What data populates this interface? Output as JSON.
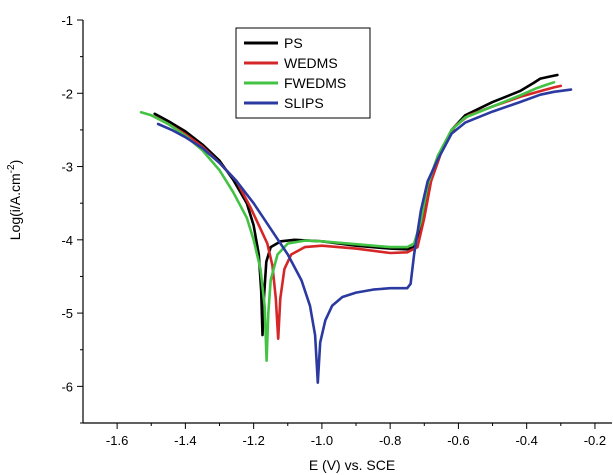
{
  "chart_data": {
    "type": "line",
    "title": "",
    "xlabel": "E (V) vs. SCE",
    "ylabel": {
      "prefix": "Log(i/A.cm",
      "sup": "-2",
      "suffix": ")"
    },
    "xlim": [
      -1.7,
      -0.15
    ],
    "ylim": [
      -6.5,
      -1
    ],
    "xticks": [
      -1.6,
      -1.4,
      -1.2,
      -1.0,
      -0.8,
      -0.6,
      -0.4,
      -0.2
    ],
    "xtick_labels": [
      "-1.6",
      "-1.4",
      "-1.2",
      "-1.0",
      "-0.8",
      "-0.6",
      "-0.4",
      "-0.2"
    ],
    "yticks": [
      -6,
      -5,
      -4,
      -3,
      -2,
      -1
    ],
    "ytick_labels": [
      "-6",
      "-5",
      "-4",
      "-3",
      "-2",
      "-1"
    ],
    "grid": false,
    "legend_position": "top-center",
    "series": [
      {
        "name": "PS",
        "color": "#000000",
        "points": [
          [
            -1.49,
            -2.28
          ],
          [
            -1.45,
            -2.38
          ],
          [
            -1.4,
            -2.52
          ],
          [
            -1.35,
            -2.7
          ],
          [
            -1.3,
            -2.92
          ],
          [
            -1.26,
            -3.18
          ],
          [
            -1.22,
            -3.5
          ],
          [
            -1.2,
            -3.8
          ],
          [
            -1.185,
            -4.2
          ],
          [
            -1.178,
            -4.7
          ],
          [
            -1.174,
            -5.3
          ],
          [
            -1.17,
            -4.8
          ],
          [
            -1.163,
            -4.3
          ],
          [
            -1.15,
            -4.1
          ],
          [
            -1.12,
            -4.02
          ],
          [
            -1.08,
            -4.0
          ],
          [
            -1.0,
            -4.02
          ],
          [
            -0.9,
            -4.08
          ],
          [
            -0.8,
            -4.12
          ],
          [
            -0.75,
            -4.13
          ],
          [
            -0.73,
            -4.1
          ],
          [
            -0.71,
            -3.8
          ],
          [
            -0.69,
            -3.3
          ],
          [
            -0.66,
            -2.9
          ],
          [
            -0.62,
            -2.5
          ],
          [
            -0.58,
            -2.3
          ],
          [
            -0.5,
            -2.12
          ],
          [
            -0.42,
            -1.97
          ],
          [
            -0.38,
            -1.86
          ],
          [
            -0.36,
            -1.8
          ],
          [
            -0.33,
            -1.77
          ],
          [
            -0.31,
            -1.75
          ]
        ]
      },
      {
        "name": "WEDMS",
        "color": "#d62728",
        "points": [
          [
            -1.49,
            -2.32
          ],
          [
            -1.45,
            -2.42
          ],
          [
            -1.4,
            -2.56
          ],
          [
            -1.35,
            -2.73
          ],
          [
            -1.3,
            -2.95
          ],
          [
            -1.25,
            -3.2
          ],
          [
            -1.21,
            -3.55
          ],
          [
            -1.18,
            -3.85
          ],
          [
            -1.16,
            -4.05
          ],
          [
            -1.145,
            -4.35
          ],
          [
            -1.135,
            -4.8
          ],
          [
            -1.128,
            -5.35
          ],
          [
            -1.122,
            -4.8
          ],
          [
            -1.11,
            -4.4
          ],
          [
            -1.09,
            -4.2
          ],
          [
            -1.05,
            -4.1
          ],
          [
            -1.0,
            -4.08
          ],
          [
            -0.9,
            -4.12
          ],
          [
            -0.8,
            -4.18
          ],
          [
            -0.75,
            -4.17
          ],
          [
            -0.72,
            -4.1
          ],
          [
            -0.7,
            -3.7
          ],
          [
            -0.68,
            -3.2
          ],
          [
            -0.65,
            -2.8
          ],
          [
            -0.61,
            -2.45
          ],
          [
            -0.57,
            -2.3
          ],
          [
            -0.5,
            -2.18
          ],
          [
            -0.42,
            -2.05
          ],
          [
            -0.36,
            -1.97
          ],
          [
            -0.32,
            -1.92
          ],
          [
            -0.3,
            -1.9
          ]
        ]
      },
      {
        "name": "FWEDMS",
        "color": "#44c244",
        "points": [
          [
            -1.53,
            -2.26
          ],
          [
            -1.5,
            -2.3
          ],
          [
            -1.45,
            -2.42
          ],
          [
            -1.4,
            -2.58
          ],
          [
            -1.35,
            -2.78
          ],
          [
            -1.3,
            -3.05
          ],
          [
            -1.26,
            -3.35
          ],
          [
            -1.22,
            -3.7
          ],
          [
            -1.2,
            -4.0
          ],
          [
            -1.18,
            -4.4
          ],
          [
            -1.168,
            -4.9
          ],
          [
            -1.162,
            -5.65
          ],
          [
            -1.157,
            -5.0
          ],
          [
            -1.15,
            -4.55
          ],
          [
            -1.13,
            -4.2
          ],
          [
            -1.1,
            -4.05
          ],
          [
            -1.05,
            -4.01
          ],
          [
            -1.0,
            -4.02
          ],
          [
            -0.9,
            -4.06
          ],
          [
            -0.8,
            -4.1
          ],
          [
            -0.75,
            -4.1
          ],
          [
            -0.73,
            -4.05
          ],
          [
            -0.71,
            -3.75
          ],
          [
            -0.69,
            -3.25
          ],
          [
            -0.66,
            -2.85
          ],
          [
            -0.62,
            -2.5
          ],
          [
            -0.58,
            -2.33
          ],
          [
            -0.5,
            -2.18
          ],
          [
            -0.42,
            -2.03
          ],
          [
            -0.37,
            -1.93
          ],
          [
            -0.34,
            -1.88
          ],
          [
            -0.32,
            -1.85
          ]
        ]
      },
      {
        "name": "SLIPS",
        "color": "#2b3aa0",
        "points": [
          [
            -1.48,
            -2.42
          ],
          [
            -1.44,
            -2.5
          ],
          [
            -1.4,
            -2.6
          ],
          [
            -1.35,
            -2.75
          ],
          [
            -1.3,
            -2.95
          ],
          [
            -1.25,
            -3.2
          ],
          [
            -1.2,
            -3.5
          ],
          [
            -1.15,
            -3.85
          ],
          [
            -1.1,
            -4.2
          ],
          [
            -1.06,
            -4.55
          ],
          [
            -1.035,
            -4.9
          ],
          [
            -1.02,
            -5.3
          ],
          [
            -1.012,
            -5.95
          ],
          [
            -1.005,
            -5.4
          ],
          [
            -0.99,
            -5.1
          ],
          [
            -0.97,
            -4.9
          ],
          [
            -0.94,
            -4.78
          ],
          [
            -0.9,
            -4.72
          ],
          [
            -0.85,
            -4.68
          ],
          [
            -0.8,
            -4.66
          ],
          [
            -0.75,
            -4.66
          ],
          [
            -0.74,
            -4.6
          ],
          [
            -0.73,
            -4.2
          ],
          [
            -0.71,
            -3.6
          ],
          [
            -0.69,
            -3.2
          ],
          [
            -0.66,
            -2.9
          ],
          [
            -0.62,
            -2.55
          ],
          [
            -0.58,
            -2.4
          ],
          [
            -0.5,
            -2.25
          ],
          [
            -0.42,
            -2.12
          ],
          [
            -0.36,
            -2.02
          ],
          [
            -0.32,
            -1.98
          ],
          [
            -0.27,
            -1.95
          ]
        ]
      }
    ]
  }
}
